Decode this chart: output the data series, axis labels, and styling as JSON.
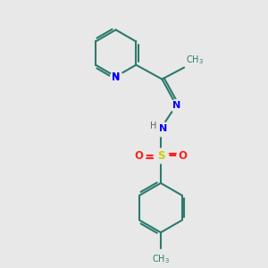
{
  "background_color": "#e8e8e8",
  "bond_color": "#2d7a6e",
  "n_color": "#0000ff",
  "s_color": "#cccc00",
  "o_color": "#ff2222",
  "line_width": 1.5,
  "figsize": [
    3.0,
    3.0
  ],
  "dpi": 100,
  "xlim": [
    0,
    10
  ],
  "ylim": [
    0,
    10
  ]
}
